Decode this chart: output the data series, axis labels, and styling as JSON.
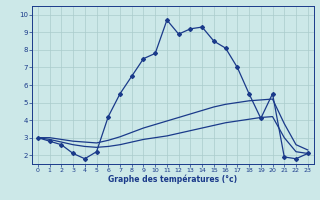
{
  "xlabel": "Graphe des températures (°c)",
  "bg_color": "#cce8e8",
  "line_color": "#1a3a8a",
  "grid_color": "#aacccc",
  "xlim": [
    -0.5,
    23.5
  ],
  "ylim": [
    1.5,
    10.5
  ],
  "xticks": [
    0,
    1,
    2,
    3,
    4,
    5,
    6,
    7,
    8,
    9,
    10,
    11,
    12,
    13,
    14,
    15,
    16,
    17,
    18,
    19,
    20,
    21,
    22,
    23
  ],
  "yticks": [
    2,
    3,
    4,
    5,
    6,
    7,
    8,
    9,
    10
  ],
  "curve1_x": [
    0,
    1,
    2,
    3,
    4,
    5,
    6,
    7,
    8,
    9,
    10,
    11,
    12,
    13,
    14,
    15,
    16,
    17,
    18,
    19,
    20,
    21,
    22,
    23
  ],
  "curve1_y": [
    3.0,
    2.8,
    2.6,
    2.1,
    1.8,
    2.2,
    4.2,
    5.5,
    6.5,
    7.5,
    7.8,
    9.7,
    8.9,
    9.2,
    9.3,
    8.5,
    8.1,
    7.0,
    5.5,
    4.1,
    5.5,
    1.9,
    1.8,
    2.1
  ],
  "curve2_x": [
    0,
    1,
    2,
    3,
    4,
    5,
    6,
    7,
    8,
    9,
    10,
    11,
    12,
    13,
    14,
    15,
    16,
    17,
    18,
    19,
    20,
    21,
    22,
    23
  ],
  "curve2_y": [
    3.0,
    2.9,
    2.75,
    2.6,
    2.5,
    2.45,
    2.5,
    2.6,
    2.75,
    2.9,
    3.0,
    3.1,
    3.25,
    3.4,
    3.55,
    3.7,
    3.85,
    3.95,
    4.05,
    4.15,
    4.2,
    3.0,
    2.2,
    2.1
  ],
  "curve3_x": [
    0,
    1,
    2,
    3,
    4,
    5,
    6,
    7,
    8,
    9,
    10,
    11,
    12,
    13,
    14,
    15,
    16,
    17,
    18,
    19,
    20,
    21,
    22,
    23
  ],
  "curve3_y": [
    3.0,
    3.0,
    2.9,
    2.8,
    2.75,
    2.7,
    2.85,
    3.05,
    3.3,
    3.55,
    3.75,
    3.95,
    4.15,
    4.35,
    4.55,
    4.75,
    4.9,
    5.0,
    5.1,
    5.15,
    5.2,
    3.8,
    2.6,
    2.3
  ]
}
